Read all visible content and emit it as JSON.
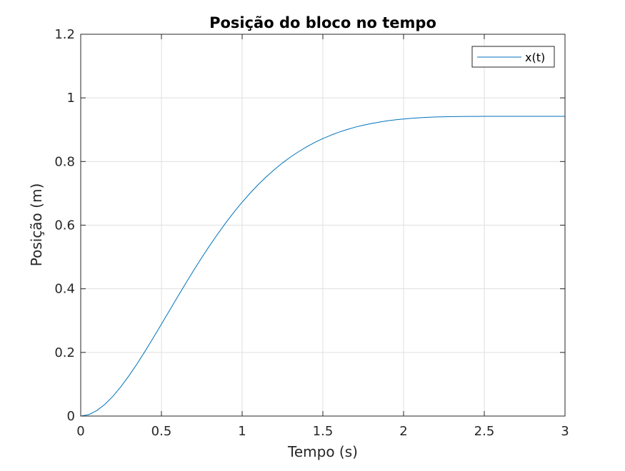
{
  "chart_data": {
    "type": "line",
    "title": "Posição do bloco no tempo",
    "xlabel": "Tempo (s)",
    "ylabel": "Posição (m)",
    "xlim": [
      0,
      3
    ],
    "ylim": [
      0,
      1.2
    ],
    "xticks": [
      0,
      0.5,
      1,
      1.5,
      2,
      2.5,
      3
    ],
    "xtick_labels": [
      "0",
      "0.5",
      "1",
      "1.5",
      "2",
      "2.5",
      "3"
    ],
    "yticks": [
      0,
      0.2,
      0.4,
      0.6,
      0.8,
      1,
      1.2
    ],
    "ytick_labels": [
      "0",
      "0.2",
      "0.4",
      "0.6",
      "0.8",
      "1",
      "1.2"
    ],
    "grid": true,
    "legend_position": "top-right",
    "series": [
      {
        "name": "x(t)",
        "color": "#0072bd",
        "x": [
          0,
          0.05,
          0.1,
          0.15,
          0.2,
          0.25,
          0.3,
          0.35,
          0.4,
          0.45,
          0.5,
          0.55,
          0.6,
          0.65,
          0.7,
          0.75,
          0.8,
          0.85,
          0.9,
          0.95,
          1.0,
          1.05,
          1.1,
          1.15,
          1.2,
          1.25,
          1.3,
          1.35,
          1.4,
          1.45,
          1.5,
          1.55,
          1.6,
          1.65,
          1.7,
          1.75,
          1.8,
          1.85,
          1.9,
          1.95,
          2.0,
          2.05,
          2.1,
          2.15,
          2.2,
          2.25,
          2.3,
          2.35,
          2.4,
          2.45,
          2.5,
          2.55,
          2.6,
          2.65,
          2.7,
          2.75,
          2.8,
          2.85,
          2.9,
          2.95,
          3.0
        ],
        "y": [
          0,
          0.0045,
          0.0172,
          0.0369,
          0.0624,
          0.0928,
          0.1273,
          0.1649,
          0.2048,
          0.2464,
          0.2889,
          0.3318,
          0.3746,
          0.4168,
          0.458,
          0.4981,
          0.5366,
          0.5734,
          0.6083,
          0.6413,
          0.6722,
          0.701,
          0.7277,
          0.7523,
          0.7748,
          0.7955,
          0.8142,
          0.8311,
          0.8463,
          0.8599,
          0.8721,
          0.8828,
          0.8923,
          0.9006,
          0.9079,
          0.9141,
          0.9195,
          0.924,
          0.9279,
          0.9311,
          0.9337,
          0.9359,
          0.9376,
          0.939,
          0.94,
          0.9407,
          0.9412,
          0.9416,
          0.9418,
          0.9419,
          0.942,
          0.942,
          0.942,
          0.942,
          0.942,
          0.942,
          0.942,
          0.942,
          0.942,
          0.942,
          0.942
        ]
      }
    ]
  }
}
